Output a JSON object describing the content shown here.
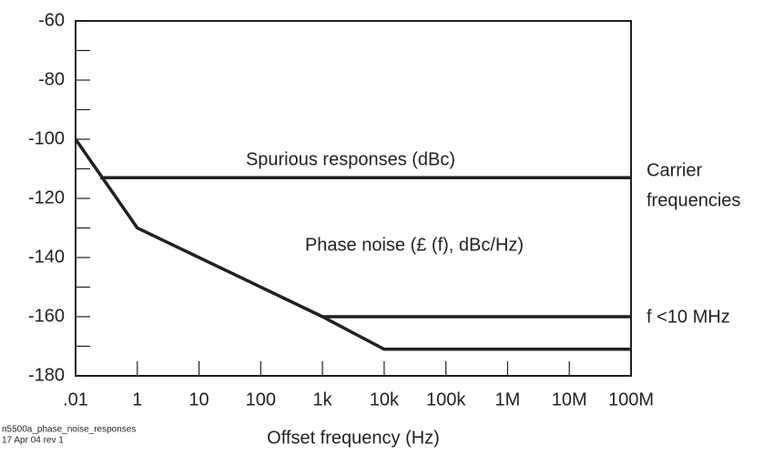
{
  "chart_data": {
    "type": "line",
    "x_label": "Offset frequency (Hz)",
    "xlim": [
      0,
      9
    ],
    "xticks": [
      {
        "value": 0,
        "label": ".01"
      },
      {
        "value": 1,
        "label": "1"
      },
      {
        "value": 2,
        "label": "10"
      },
      {
        "value": 3,
        "label": "100"
      },
      {
        "value": 4,
        "label": "1k"
      },
      {
        "value": 5,
        "label": "10k"
      },
      {
        "value": 6,
        "label": "100k"
      },
      {
        "value": 7,
        "label": "1M"
      },
      {
        "value": 8,
        "label": "10M"
      },
      {
        "value": 9,
        "label": "100M"
      }
    ],
    "ylim": [
      -180,
      -60
    ],
    "yticks": [
      -180,
      -160,
      -140,
      -120,
      -100,
      -80,
      -60
    ],
    "yticks_minor": [
      -170,
      -150,
      -130,
      -110,
      -90,
      -70
    ],
    "series": [
      {
        "name": "Phase noise",
        "color": "#231f20",
        "x": [
          0,
          1,
          4,
          5,
          9
        ],
        "values": [
          -100,
          -130,
          -160,
          -171,
          -171
        ]
      },
      {
        "name": "f <10 MHz",
        "color": "#231f20",
        "x": [
          4,
          9
        ],
        "values": [
          -160,
          -160
        ]
      },
      {
        "name": "Spurious responses",
        "color": "#231f20",
        "x": [
          0.4,
          9
        ],
        "values": [
          -113,
          -113
        ]
      }
    ],
    "annotations": [
      {
        "text": "Spurious responses (dBc)"
      },
      {
        "text": "Phase noise (£ (f), dBc/Hz)"
      },
      {
        "lines": [
          "Carrier",
          "frequencies"
        ]
      },
      {
        "text": "f <10 MHz"
      }
    ],
    "footnote": [
      "n5500a_phase_noise_responses",
      "17 Apr 04  rev 1"
    ]
  }
}
